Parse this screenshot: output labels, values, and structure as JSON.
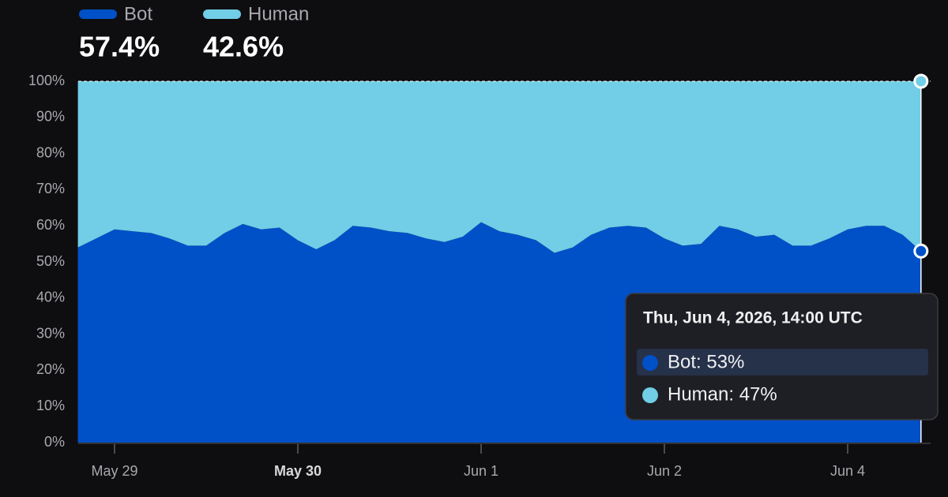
{
  "chart_data": {
    "type": "stacked_area",
    "categories": [
      null,
      null,
      "May 29",
      null,
      null,
      null,
      null,
      null,
      null,
      null,
      null,
      null,
      "May 30",
      null,
      null,
      null,
      null,
      null,
      null,
      null,
      null,
      null,
      "Jun 1",
      null,
      null,
      null,
      null,
      null,
      null,
      null,
      null,
      null,
      "Jun 2",
      null,
      null,
      null,
      null,
      null,
      null,
      null,
      null,
      null,
      "Jun 4",
      null,
      null,
      null,
      null
    ],
    "series": [
      {
        "name": "Bot",
        "color": "#0050c8",
        "legend_value": "57.4%",
        "values": [
          54,
          56.5,
          59,
          58.5,
          58,
          56.5,
          54.5,
          54.5,
          58,
          60.5,
          59,
          59.5,
          56,
          53.5,
          56,
          60,
          59.5,
          58.5,
          58,
          56.5,
          55.5,
          57,
          61,
          58.5,
          57.5,
          56,
          52.5,
          54,
          57.5,
          59.5,
          60,
          59.5,
          56.5,
          54.5,
          55,
          60,
          59,
          57,
          57.5,
          54.5,
          54.5,
          56.5,
          59,
          60,
          60,
          57.5,
          53
        ]
      },
      {
        "name": "Human",
        "color": "#72cde6",
        "legend_value": "42.6%",
        "values": [
          46,
          43.5,
          41,
          41.5,
          42,
          43.5,
          45.5,
          45.5,
          42,
          39.5,
          41,
          40.5,
          44,
          46.5,
          44,
          40,
          40.5,
          41.5,
          42,
          43.5,
          44.5,
          43,
          39,
          41.5,
          42.5,
          44,
          47.5,
          46,
          42.5,
          40.5,
          40,
          40.5,
          43.5,
          45.5,
          45,
          40,
          41,
          43,
          42.5,
          45.5,
          45.5,
          43.5,
          41,
          40,
          40,
          42.5,
          47
        ]
      }
    ],
    "ylim": [
      0,
      100
    ],
    "yticks": [
      {
        "value": 0,
        "label": "0%"
      },
      {
        "value": 10,
        "label": "10%"
      },
      {
        "value": 20,
        "label": "20%"
      },
      {
        "value": 30,
        "label": "30%"
      },
      {
        "value": 40,
        "label": "40%"
      },
      {
        "value": 50,
        "label": "50%"
      },
      {
        "value": 60,
        "label": "60%"
      },
      {
        "value": 70,
        "label": "70%"
      },
      {
        "value": 80,
        "label": "80%"
      },
      {
        "value": 90,
        "label": "90%"
      },
      {
        "value": 100,
        "label": "100%"
      }
    ],
    "bold_category": "May 30",
    "tooltip": {
      "title": "Thu, Jun 4, 2026, 14:00 UTC",
      "rows": [
        "Bot: 53%",
        "Human: 47%"
      ]
    }
  }
}
